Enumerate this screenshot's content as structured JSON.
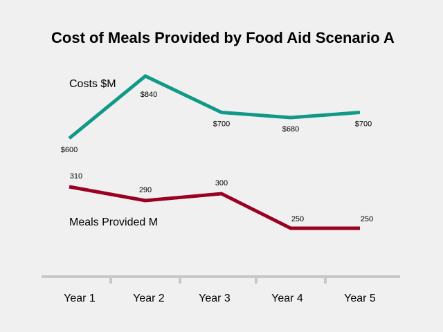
{
  "chart_data": {
    "type": "line",
    "title": "Cost of Meals Provided by Food Aid Scenario A",
    "categories": [
      "Year 1",
      "Year 2",
      "Year 3",
      "Year 4",
      "Year 5"
    ],
    "series": [
      {
        "name": "Costs $M",
        "values": [
          600,
          840,
          700,
          680,
          700
        ],
        "labels": [
          "$600",
          "$840",
          "$700",
          "$680",
          "$700"
        ],
        "color": "#119988"
      },
      {
        "name": "Meals Provided M",
        "values": [
          310,
          290,
          300,
          250,
          250
        ],
        "labels": [
          "310",
          "290",
          "300",
          "250",
          "250"
        ],
        "color": "#990022"
      }
    ],
    "axis_color": "#c8c8c8",
    "grid": false,
    "legend": "inline labels"
  }
}
